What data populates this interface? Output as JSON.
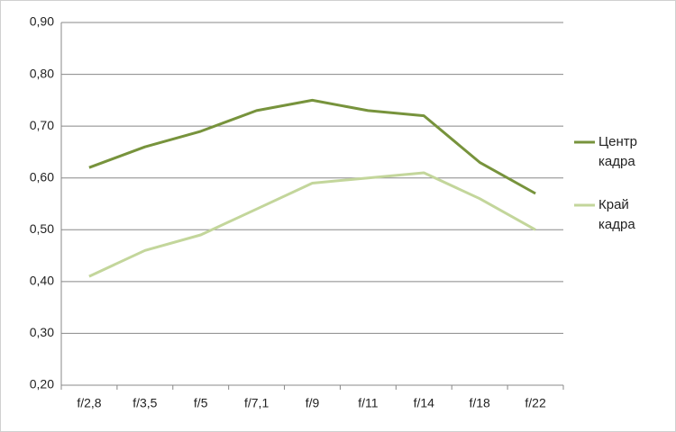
{
  "chart_data": {
    "type": "line",
    "categories": [
      "f/2,8",
      "f/3,5",
      "f/5",
      "f/7,1",
      "f/9",
      "f/11",
      "f/14",
      "f/18",
      "f/22"
    ],
    "series": [
      {
        "name": "Центр кадра",
        "color": "#77933c",
        "values": [
          0.62,
          0.66,
          0.69,
          0.73,
          0.75,
          0.73,
          0.72,
          0.63,
          0.57
        ]
      },
      {
        "name": "Край кадра",
        "color": "#c3d69b",
        "values": [
          0.41,
          0.46,
          0.49,
          0.54,
          0.59,
          0.6,
          0.61,
          0.56,
          0.5
        ]
      }
    ],
    "ylim": [
      0.2,
      0.9
    ],
    "yticks": [
      {
        "value": 0.2,
        "label": "0,20"
      },
      {
        "value": 0.3,
        "label": "0,30"
      },
      {
        "value": 0.4,
        "label": "0,40"
      },
      {
        "value": 0.5,
        "label": "0,50"
      },
      {
        "value": 0.6,
        "label": "0,60"
      },
      {
        "value": 0.7,
        "label": "0,70"
      },
      {
        "value": 0.8,
        "label": "0,80"
      },
      {
        "value": 0.9,
        "label": "0,90"
      }
    ],
    "grid": true,
    "legend": "right"
  }
}
